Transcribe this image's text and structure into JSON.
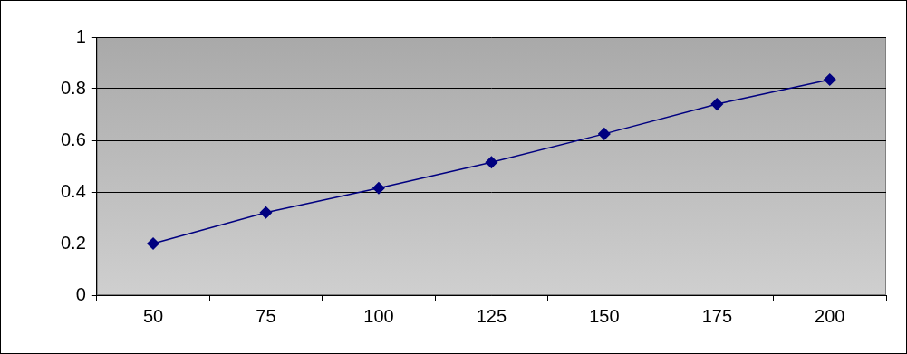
{
  "chart_data": {
    "type": "line",
    "categories": [
      "50",
      "75",
      "100",
      "125",
      "150",
      "175",
      "200"
    ],
    "values": [
      0.2,
      0.32,
      0.415,
      0.515,
      0.625,
      0.74,
      0.835
    ],
    "color": "#000080",
    "marker": "diamond",
    "line_style": "solid",
    "ylim": [
      0,
      1
    ],
    "yticks": [
      0,
      0.2,
      0.4,
      0.6,
      0.8,
      1
    ],
    "grid": true
  }
}
